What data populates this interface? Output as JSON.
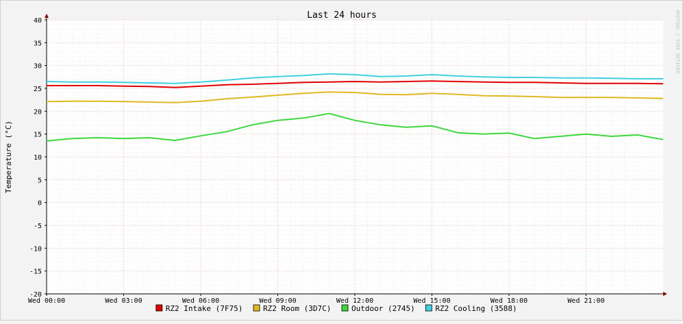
{
  "chart_data": {
    "type": "line",
    "title": "Last 24 hours",
    "ylabel": "Temperature (°C)",
    "watermark": "RRDTOOL / TOBI OETIKER",
    "ylim": [
      -20,
      40
    ],
    "yticks": [
      -20,
      -15,
      -10,
      -5,
      0,
      5,
      10,
      15,
      20,
      25,
      30,
      35,
      40
    ],
    "xlim": [
      0,
      24
    ],
    "xtick_hours": [
      0,
      3,
      6,
      9,
      12,
      15,
      18,
      21
    ],
    "xtick_labels": [
      "Wed 00:00",
      "Wed 03:00",
      "Wed 06:00",
      "Wed 09:00",
      "Wed 12:00",
      "Wed 15:00",
      "Wed 18:00",
      "Wed 21:00"
    ],
    "grid": true,
    "legend_position": "bottom",
    "series": [
      {
        "name": "RZ2 Intake (7F75)",
        "color": "#e00000",
        "x": [
          0,
          1,
          2,
          3,
          4,
          5,
          6,
          7,
          8,
          9,
          10,
          11,
          12,
          13,
          14,
          15,
          16,
          17,
          18,
          19,
          20,
          21,
          22,
          23,
          24
        ],
        "y": [
          25.6,
          25.6,
          25.6,
          25.5,
          25.4,
          25.2,
          25.5,
          25.8,
          25.9,
          26.1,
          26.3,
          26.4,
          26.5,
          26.4,
          26.5,
          26.6,
          26.5,
          26.4,
          26.3,
          26.3,
          26.2,
          26.1,
          26.1,
          26.1,
          26.0
        ]
      },
      {
        "name": "RZ2 Room (3D7C)",
        "color": "#e0b820",
        "x": [
          0,
          1,
          2,
          3,
          4,
          5,
          6,
          7,
          8,
          9,
          10,
          11,
          12,
          13,
          14,
          15,
          16,
          17,
          18,
          19,
          20,
          21,
          22,
          23,
          24
        ],
        "y": [
          22.1,
          22.2,
          22.2,
          22.1,
          22.0,
          21.9,
          22.2,
          22.7,
          23.1,
          23.5,
          23.9,
          24.2,
          24.1,
          23.7,
          23.6,
          23.9,
          23.7,
          23.4,
          23.3,
          23.2,
          23.0,
          23.0,
          23.0,
          22.9,
          22.8
        ]
      },
      {
        "name": "Outdoor (2745)",
        "color": "#3ad83a",
        "x": [
          0,
          1,
          2,
          3,
          4,
          5,
          6,
          7,
          8,
          9,
          10,
          11,
          12,
          13,
          14,
          15,
          16,
          17,
          18,
          19,
          20,
          21,
          22,
          23,
          24
        ],
        "y": [
          13.5,
          14.0,
          14.2,
          14.0,
          14.2,
          13.6,
          14.6,
          15.5,
          17.0,
          18.0,
          18.5,
          19.5,
          18.0,
          17.0,
          16.5,
          16.8,
          15.3,
          15.0,
          15.2,
          14.0,
          14.5,
          15.0,
          14.5,
          14.8,
          13.8
        ]
      },
      {
        "name": "RZ2 Cooling (3588)",
        "color": "#40d0e0",
        "x": [
          0,
          1,
          2,
          3,
          4,
          5,
          6,
          7,
          8,
          9,
          10,
          11,
          12,
          13,
          14,
          15,
          16,
          17,
          18,
          19,
          20,
          21,
          22,
          23,
          24
        ],
        "y": [
          26.5,
          26.4,
          26.4,
          26.3,
          26.2,
          26.1,
          26.4,
          26.8,
          27.3,
          27.6,
          27.8,
          28.2,
          28.0,
          27.6,
          27.7,
          28.0,
          27.7,
          27.5,
          27.4,
          27.4,
          27.3,
          27.3,
          27.2,
          27.1,
          27.1
        ]
      }
    ]
  }
}
